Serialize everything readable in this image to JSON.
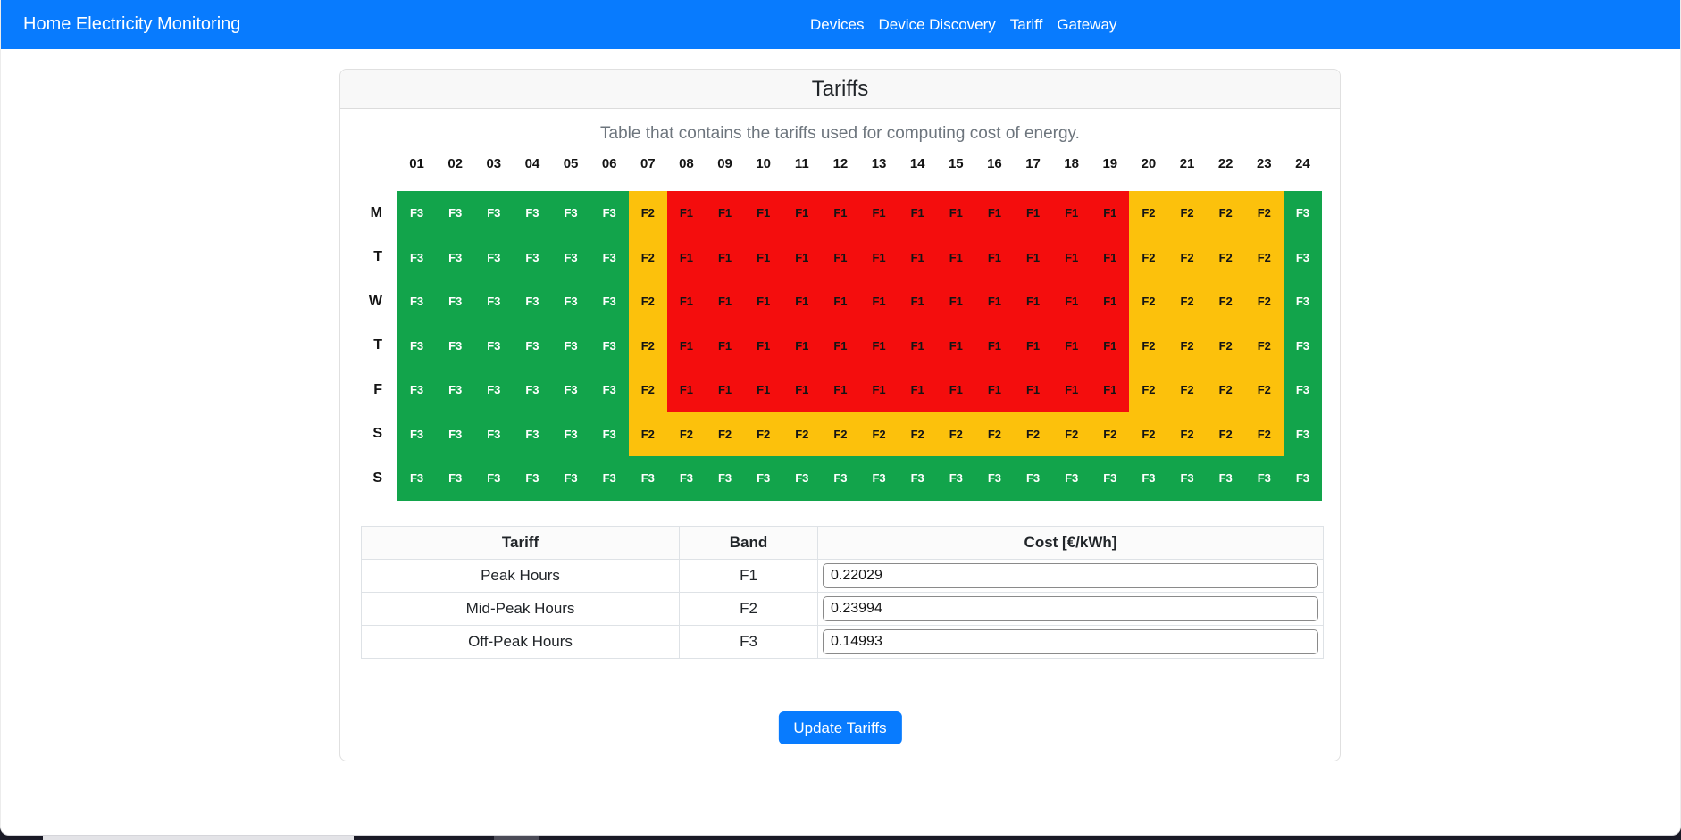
{
  "navbar": {
    "brand": "Home Electricity Monitoring",
    "links": [
      "Devices",
      "Device Discovery",
      "Tariff",
      "Gateway"
    ]
  },
  "card": {
    "title": "Tariffs",
    "subtitle": "Table that contains the tariffs used for computing cost of energy."
  },
  "schedule": {
    "hours": [
      "01",
      "02",
      "03",
      "04",
      "05",
      "06",
      "07",
      "08",
      "09",
      "10",
      "11",
      "12",
      "13",
      "14",
      "15",
      "16",
      "17",
      "18",
      "19",
      "20",
      "21",
      "22",
      "23",
      "24"
    ],
    "days": [
      "M",
      "T",
      "W",
      "T",
      "F",
      "S",
      "S"
    ],
    "bands": [
      [
        "F3",
        "F3",
        "F3",
        "F3",
        "F3",
        "F3",
        "F2",
        "F1",
        "F1",
        "F1",
        "F1",
        "F1",
        "F1",
        "F1",
        "F1",
        "F1",
        "F1",
        "F1",
        "F1",
        "F2",
        "F2",
        "F2",
        "F2",
        "F3"
      ],
      [
        "F3",
        "F3",
        "F3",
        "F3",
        "F3",
        "F3",
        "F2",
        "F1",
        "F1",
        "F1",
        "F1",
        "F1",
        "F1",
        "F1",
        "F1",
        "F1",
        "F1",
        "F1",
        "F1",
        "F2",
        "F2",
        "F2",
        "F2",
        "F3"
      ],
      [
        "F3",
        "F3",
        "F3",
        "F3",
        "F3",
        "F3",
        "F2",
        "F1",
        "F1",
        "F1",
        "F1",
        "F1",
        "F1",
        "F1",
        "F1",
        "F1",
        "F1",
        "F1",
        "F1",
        "F2",
        "F2",
        "F2",
        "F2",
        "F3"
      ],
      [
        "F3",
        "F3",
        "F3",
        "F3",
        "F3",
        "F3",
        "F2",
        "F1",
        "F1",
        "F1",
        "F1",
        "F1",
        "F1",
        "F1",
        "F1",
        "F1",
        "F1",
        "F1",
        "F1",
        "F2",
        "F2",
        "F2",
        "F2",
        "F3"
      ],
      [
        "F3",
        "F3",
        "F3",
        "F3",
        "F3",
        "F3",
        "F2",
        "F1",
        "F1",
        "F1",
        "F1",
        "F1",
        "F1",
        "F1",
        "F1",
        "F1",
        "F1",
        "F1",
        "F1",
        "F2",
        "F2",
        "F2",
        "F2",
        "F3"
      ],
      [
        "F3",
        "F3",
        "F3",
        "F3",
        "F3",
        "F3",
        "F2",
        "F2",
        "F2",
        "F2",
        "F2",
        "F2",
        "F2",
        "F2",
        "F2",
        "F2",
        "F2",
        "F2",
        "F2",
        "F2",
        "F2",
        "F2",
        "F2",
        "F3"
      ],
      [
        "F3",
        "F3",
        "F3",
        "F3",
        "F3",
        "F3",
        "F3",
        "F3",
        "F3",
        "F3",
        "F3",
        "F3",
        "F3",
        "F3",
        "F3",
        "F3",
        "F3",
        "F3",
        "F3",
        "F3",
        "F3",
        "F3",
        "F3",
        "F3"
      ]
    ],
    "band_colors": {
      "F1": "#f40d0d",
      "F2": "#fcc10c",
      "F3": "#12a44b"
    },
    "band_text_colors": {
      "F1": "#141414",
      "F2": "#141414",
      "F3": "#ffffff"
    }
  },
  "tariff_table": {
    "headers": [
      "Tariff",
      "Band",
      "Cost [€/kWh]"
    ],
    "rows": [
      {
        "tariff": "Peak Hours",
        "band": "F1",
        "cost": "0.22029"
      },
      {
        "tariff": "Mid-Peak Hours",
        "band": "F2",
        "cost": "0.23994"
      },
      {
        "tariff": "Off-Peak Hours",
        "band": "F3",
        "cost": "0.14993"
      }
    ]
  },
  "actions": {
    "update_button": "Update Tariffs"
  },
  "colors": {
    "primary": "#087bfe",
    "peak": "#f40d0d",
    "mid_peak": "#fcc10c",
    "off_peak": "#12a44b"
  }
}
